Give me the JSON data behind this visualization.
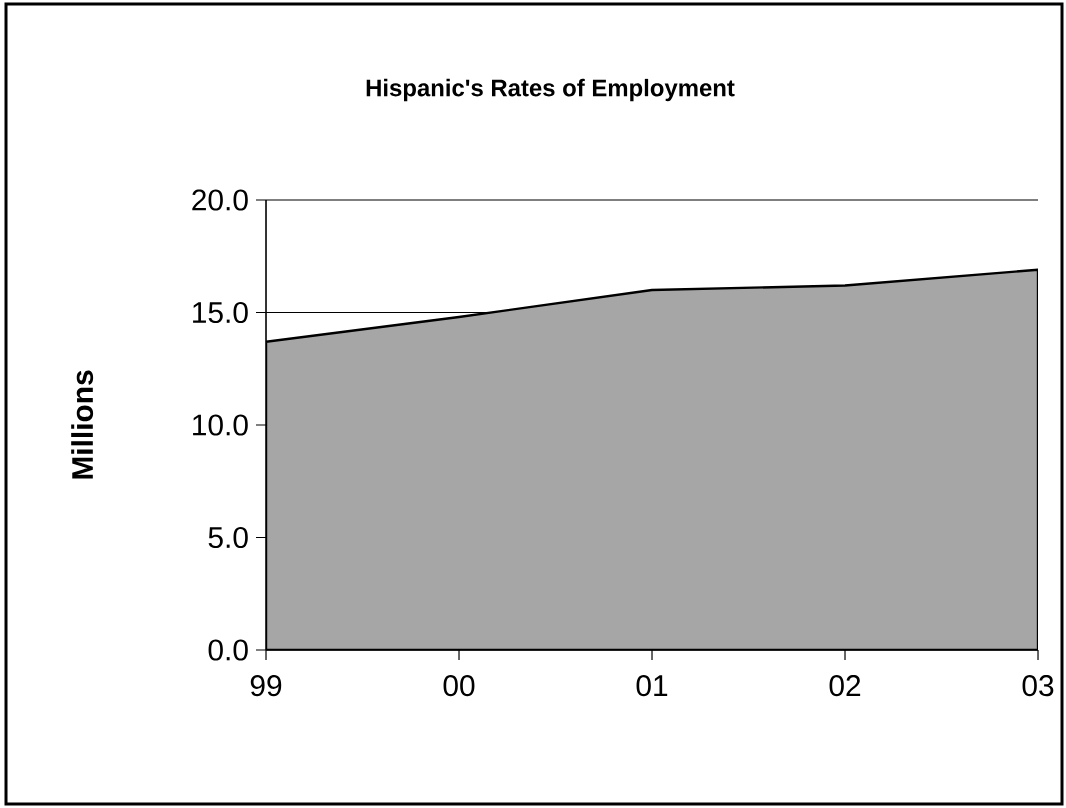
{
  "chart_data": {
    "type": "area",
    "title": "Hispanic's Rates of Employment",
    "ylabel": "Millions",
    "categories": [
      "99",
      "00",
      "01",
      "02",
      "03"
    ],
    "values": [
      13.7,
      14.8,
      16.0,
      16.2,
      16.9
    ],
    "color": "#a6a6a6",
    "ylim": [
      0,
      20
    ],
    "yticks": [
      {
        "value": 0,
        "label": "0.0"
      },
      {
        "value": 5,
        "label": "5.0"
      },
      {
        "value": 10,
        "label": "10.0"
      },
      {
        "value": 15,
        "label": "15.0"
      },
      {
        "value": 20,
        "label": "20.0"
      }
    ],
    "grid": "y"
  }
}
